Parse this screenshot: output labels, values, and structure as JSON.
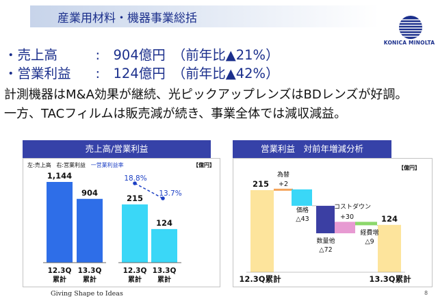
{
  "page": {
    "title": "産業用材料・機器事業総括",
    "page_number": "8",
    "tagline": "Giving Shape to Ideas",
    "logo_text": "KONICA MINOLTA"
  },
  "summary": {
    "sales": {
      "label": "売上高",
      "colon": ":",
      "value": "904億円",
      "change": "（前年比▲21%）"
    },
    "profit": {
      "label": "営業利益",
      "colon": ":",
      "value": "124億円",
      "change": "（前年比▲42%）"
    },
    "bullet": "・",
    "desc_line1": "計測機器はM&A効果が継続、光ピックアップレンズはBDレンズが好調。",
    "desc_line2": "一方、TACフィルムは販売減が続き、事業全体では減収減益。"
  },
  "left_chart": {
    "header": "売上高/営業利益",
    "legend_left": "左:売上高",
    "legend_right": "右:営業利益",
    "legend_rate": "一営業利益率",
    "unit": "【億円】"
  },
  "right_chart": {
    "header": "営業利益　対前年増減分析",
    "unit": "【億円】"
  },
  "chart_data": [
    {
      "type": "bar",
      "title": "売上高/営業利益",
      "categories": [
        "12.3Q\n累計",
        "13.3Q\n累計"
      ],
      "series": [
        {
          "name": "売上高",
          "values": [
            1144,
            904
          ],
          "labels": [
            "1,144",
            "904"
          ],
          "color": "#2e6ee8"
        },
        {
          "name": "営業利益",
          "values": [
            215,
            124
          ],
          "labels": [
            "215",
            "124"
          ],
          "color": "#3ad7f7"
        }
      ],
      "line_series": {
        "name": "営業利益率",
        "values": [
          18.8,
          13.7
        ],
        "labels": [
          "18.8%",
          "13.7%"
        ],
        "color": "#1c3fc4"
      },
      "category_labels": {
        "sales": [
          [
            "12.3Q",
            "累計"
          ],
          [
            "13.3Q",
            "累計"
          ]
        ],
        "profit": [
          [
            "12.3Q",
            "累計"
          ],
          [
            "13.3Q",
            "累計"
          ]
        ]
      }
    },
    {
      "type": "bar",
      "title": "営業利益　対前年増減分析",
      "subtype": "waterfall",
      "ylim": [
        0,
        240
      ],
      "start": {
        "label": "12.3Q累計",
        "value": 215,
        "value_label": "215",
        "color": "#fde49c"
      },
      "steps": [
        {
          "label": "為替",
          "delta": 2,
          "delta_label": "+2",
          "color": "#f5a45a"
        },
        {
          "label": "価格",
          "delta": -43,
          "delta_label": "△43",
          "color": "#3ad7f7"
        },
        {
          "label": "数量他",
          "delta": -72,
          "delta_label": "△72",
          "color": "#3b3fa3"
        },
        {
          "label": "コストダウン",
          "delta": 30,
          "delta_label": "+30",
          "color": "#e79ad2"
        },
        {
          "label": "経費増",
          "delta": -9,
          "delta_label": "△9",
          "color": "#8cd86b"
        }
      ],
      "end": {
        "label": "13.3Q累計",
        "value": 124,
        "value_label": "124",
        "color": "#fde49c"
      }
    }
  ]
}
